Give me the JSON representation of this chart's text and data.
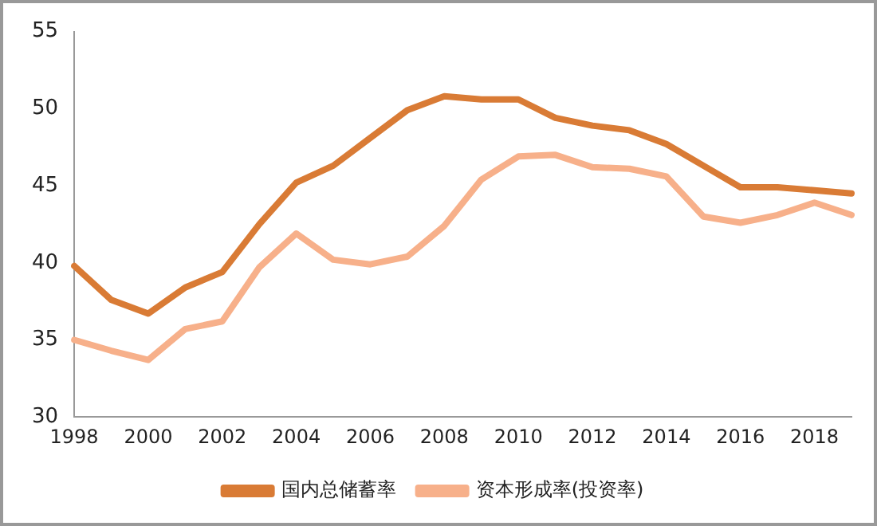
{
  "chart_data": {
    "type": "line",
    "categories": [
      "1998",
      null,
      "2000",
      null,
      "2002",
      null,
      "2004",
      null,
      "2006",
      null,
      "2008",
      null,
      "2010",
      null,
      "2012",
      null,
      "2014",
      null,
      "2016",
      null,
      "2018",
      null
    ],
    "series": [
      {
        "name": "国内总储蓄率",
        "color": "#d97b35",
        "values": [
          39.8,
          37.6,
          36.7,
          38.4,
          39.4,
          42.5,
          45.2,
          46.3,
          48.1,
          49.9,
          50.8,
          50.6,
          50.6,
          49.4,
          48.9,
          48.6,
          47.7,
          46.3,
          44.9,
          44.9,
          44.7,
          44.5
        ]
      },
      {
        "name": "资本形成率(投资率)",
        "color": "#f7b08a",
        "values": [
          35.0,
          34.3,
          33.7,
          35.7,
          36.2,
          39.7,
          41.9,
          40.2,
          39.9,
          40.4,
          42.4,
          45.4,
          46.9,
          47.0,
          46.2,
          46.1,
          45.6,
          43.0,
          42.6,
          43.1,
          43.9,
          43.1
        ]
      }
    ],
    "ylim": [
      30,
      55
    ],
    "yticks": [
      30,
      35,
      40,
      45,
      50,
      55
    ],
    "grid": false,
    "legend": "bottom",
    "marker": "none",
    "line_style": "solid"
  }
}
